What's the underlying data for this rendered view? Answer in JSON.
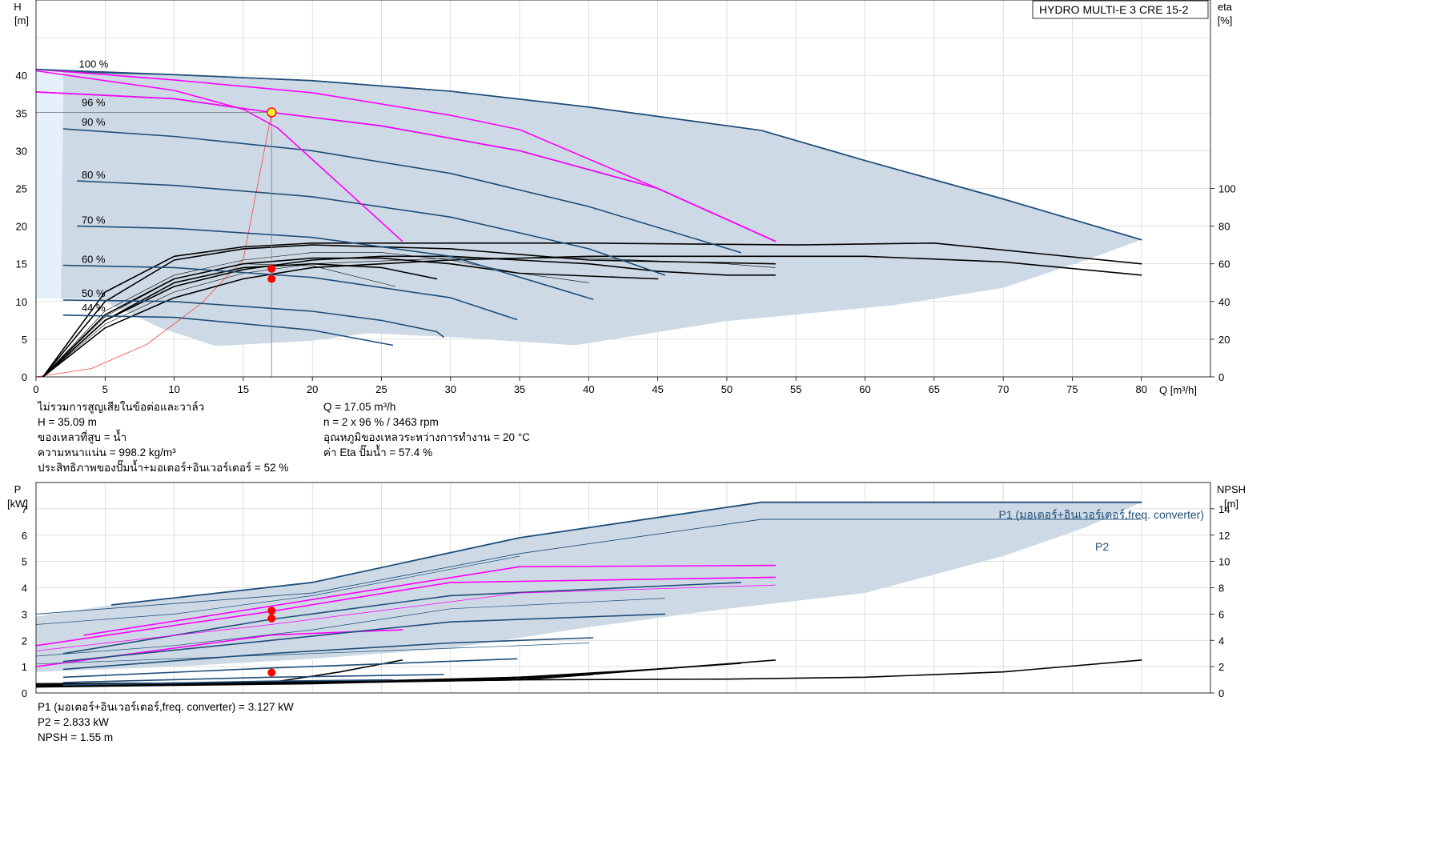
{
  "chart_data": [
    {
      "type": "line",
      "title": "HYDRO MULTI-E 3 CRE 15-2",
      "xlabel": "Q [m³/h]",
      "ylabel": "H\n[m]",
      "y2label": "eta\n[%]",
      "xlim": [
        0,
        85
      ],
      "ylim": [
        0,
        50
      ],
      "y2lim": [
        0,
        200
      ],
      "xticks": [
        0,
        5,
        10,
        15,
        20,
        25,
        30,
        35,
        40,
        45,
        50,
        55,
        60,
        65,
        70,
        75,
        80
      ],
      "yticks": [
        0,
        5,
        10,
        15,
        20,
        25,
        30,
        35,
        40
      ],
      "y2ticks": [
        0,
        20,
        40,
        60,
        80,
        100
      ],
      "grid": true,
      "colors": {
        "hq": "#1f4e79",
        "selected": "#ff00ff",
        "eta": "#000000",
        "envelope": "#cdd9e5",
        "system": "#ff4444"
      },
      "speed_curves": [
        {
          "name": "100 %",
          "points": [
            [
              2,
              40.5
            ],
            [
              10,
              40.1
            ],
            [
              20,
              39.3
            ],
            [
              30,
              37.9
            ],
            [
              40,
              35.8
            ],
            [
              52.5,
              32.7
            ],
            [
              60,
              28.7
            ],
            [
              70,
              23.6
            ],
            [
              80,
              18.2
            ]
          ]
        },
        {
          "name": "96 %",
          "points": [
            [
              0,
              37.8
            ],
            [
              10,
              36.9
            ],
            [
              17.05,
              35.09
            ],
            [
              25,
              33.3
            ],
            [
              35,
              30.0
            ],
            [
              45,
              25.0
            ],
            [
              53.5,
              18.0
            ]
          ]
        },
        {
          "name": "90 %",
          "points": [
            [
              2,
              32.9
            ],
            [
              10,
              31.9
            ],
            [
              20,
              30.0
            ],
            [
              30,
              27.0
            ],
            [
              40,
              22.6
            ],
            [
              51,
              16.5
            ]
          ]
        },
        {
          "name": "80 %",
          "points": [
            [
              3,
              26.0
            ],
            [
              10,
              25.4
            ],
            [
              20,
              23.9
            ],
            [
              30,
              21.2
            ],
            [
              40,
              17.0
            ],
            [
              45.5,
              13.5
            ]
          ]
        },
        {
          "name": "70 %",
          "points": [
            [
              3,
              20.0
            ],
            [
              10,
              19.7
            ],
            [
              20,
              18.5
            ],
            [
              30,
              16.0
            ],
            [
              40.3,
              10.3
            ]
          ]
        },
        {
          "name": "60 %",
          "points": [
            [
              2,
              14.8
            ],
            [
              10,
              14.5
            ],
            [
              20,
              13.2
            ],
            [
              30,
              10.5
            ],
            [
              34.8,
              7.6
            ]
          ]
        },
        {
          "name": "50 %",
          "points": [
            [
              2,
              10.2
            ],
            [
              10,
              10.0
            ],
            [
              20,
              8.7
            ],
            [
              25,
              7.5
            ],
            [
              29,
              6.0
            ],
            [
              29.5,
              5.3
            ]
          ]
        },
        {
          "name": "44 %",
          "points": [
            [
              2,
              8.2
            ],
            [
              10,
              7.9
            ],
            [
              20,
              6.2
            ],
            [
              25.8,
              4.2
            ]
          ]
        }
      ],
      "selected_max_curve": {
        "name": "",
        "points": [
          [
            0,
            40.8
          ],
          [
            10,
            39.4
          ],
          [
            20,
            37.7
          ],
          [
            30,
            34.7
          ],
          [
            35,
            32.8
          ],
          [
            45,
            25.0
          ],
          [
            53.5,
            18.0
          ]
        ]
      },
      "selected_single_pump": {
        "name": "",
        "points": [
          [
            0,
            40.6
          ],
          [
            10,
            38.0
          ],
          [
            15,
            35.5
          ],
          [
            17.5,
            33.0
          ],
          [
            26.5,
            18.0
          ]
        ]
      },
      "system_curve": {
        "name": "",
        "points": [
          [
            0,
            0
          ],
          [
            4,
            1.1
          ],
          [
            8,
            4.3
          ],
          [
            12,
            9.8
          ],
          [
            15,
            15.6
          ],
          [
            17.05,
            35.09
          ]
        ]
      },
      "eta_curves": [
        {
          "name": "",
          "points": [
            [
              0.5,
              0
            ],
            [
              5,
              35
            ],
            [
              10,
              54
            ],
            [
              15,
              62
            ],
            [
              20,
              66
            ],
            [
              25,
              66
            ],
            [
              30,
              62
            ],
            [
              35,
              55
            ],
            [
              40,
              50
            ]
          ]
        },
        {
          "name": "",
          "points": [
            [
              0.5,
              0
            ],
            [
              5,
              33
            ],
            [
              10,
              52
            ],
            [
              15,
              60
            ],
            [
              20,
              63
            ],
            [
              25,
              63
            ],
            [
              30,
              60
            ],
            [
              35,
              55
            ],
            [
              45,
              52
            ]
          ]
        },
        {
          "name": "",
          "points": [
            [
              0.5,
              0
            ],
            [
              5,
              30
            ],
            [
              10,
              48
            ],
            [
              15,
              57
            ],
            [
              20,
              62
            ],
            [
              25,
              64
            ],
            [
              30,
              64
            ],
            [
              35,
              62
            ],
            [
              40,
              60
            ],
            [
              45,
              56
            ],
            [
              50,
              54
            ],
            [
              53.5,
              54
            ]
          ]
        },
        {
          "name": "",
          "points": [
            [
              0.5,
              0
            ],
            [
              5,
              28
            ],
            [
              10,
              45
            ],
            [
              15,
              55
            ],
            [
              20,
              60
            ],
            [
              30,
              63
            ],
            [
              40,
              63
            ],
            [
              50,
              60
            ],
            [
              53.5,
              58
            ]
          ]
        },
        {
          "name": "",
          "points": [
            [
              0.5,
              0
            ],
            [
              5,
              26
            ],
            [
              10,
              42
            ],
            [
              15,
              52
            ],
            [
              20,
              58
            ],
            [
              30,
              62
            ],
            [
              40,
              64
            ],
            [
              50,
              64
            ],
            [
              60,
              64
            ],
            [
              70,
              61
            ],
            [
              80,
              54
            ]
          ]
        },
        {
          "name": "",
          "points": [
            [
              0.5,
              0
            ],
            [
              5,
              30
            ],
            [
              10,
              50
            ],
            [
              15,
              58
            ],
            [
              20,
              60
            ],
            [
              25,
              58
            ],
            [
              29,
              52
            ]
          ]
        },
        {
          "name": "",
          "points": [
            [
              0.5,
              0
            ],
            [
              5,
              32
            ],
            [
              10,
              52
            ],
            [
              15,
              60
            ],
            [
              20,
              59
            ],
            [
              26,
              48
            ]
          ]
        },
        {
          "name": "",
          "points": [
            [
              0.5,
              0
            ],
            [
              5,
              40
            ],
            [
              10,
              62
            ],
            [
              15,
              68
            ],
            [
              20,
              70
            ],
            [
              30,
              68
            ],
            [
              40,
              62
            ],
            [
              53.5,
              60
            ]
          ]
        },
        {
          "name": "",
          "points": [
            [
              0.5,
              0
            ],
            [
              5,
              45
            ],
            [
              10,
              64
            ],
            [
              15,
              69
            ],
            [
              20,
              71
            ],
            [
              30,
              71
            ],
            [
              40,
              71
            ],
            [
              55,
              70
            ],
            [
              65,
              71
            ],
            [
              80,
              60
            ]
          ]
        }
      ],
      "operating_points": [
        {
          "x": 17.05,
          "y": 35.09
        }
      ],
      "eta_points": [
        {
          "x": 17.05,
          "y": 57.4
        },
        {
          "x": 17.05,
          "y": 52
        }
      ],
      "info_left": [
        "ไม่รวมการสูญเสียในข้อต่อและวาล์ว",
        "H = 35.09 m",
        "ของเหลวที่สูบ = น้ำ",
        "ความหนาแน่น = 998.2 kg/m³",
        "ประสิทธิภาพของปั๊มน้ำ+มอเตอร์+อินเวอร์เตอร์ = 52 %"
      ],
      "info_right": [
        "Q = 17.05 m³/h",
        "n = 2 x 96 % / 3463 rpm",
        "อุณหภูมิของเหลวระหว่างการทำงาน = 20 °C",
        "ค่า Eta ปั๊มน้ำ = 57.4 %"
      ]
    },
    {
      "type": "line",
      "title": "",
      "xlabel": "",
      "ylabel": "P\n[kW]",
      "y2label": "NPSH\n[m]",
      "xlim": [
        0,
        85
      ],
      "ylim": [
        0,
        8
      ],
      "y2lim": [
        0,
        16
      ],
      "yticks": [
        0,
        1,
        2,
        3,
        4,
        5,
        6,
        7
      ],
      "y2ticks": [
        0,
        2,
        4,
        6,
        8,
        10,
        12,
        14
      ],
      "grid": true,
      "series": [
        {
          "name": "P1 (มอเตอร์+อินเวอร์เตอร์,freq. converter)",
          "points": [
            [
              5.5,
              3.35
            ],
            [
              20,
              4.2
            ],
            [
              35,
              5.9
            ],
            [
              52.5,
              7.25
            ],
            [
              80,
              7.25
            ]
          ]
        },
        {
          "name": "P2",
          "points": [
            [
              0,
              3.0
            ],
            [
              20,
              3.8
            ],
            [
              35,
              5.3
            ],
            [
              52.5,
              6.6
            ],
            [
              80,
              6.6
            ]
          ]
        }
      ],
      "power_curves": [
        {
          "color": "#ff00ff",
          "points": [
            [
              3.5,
              2.2
            ],
            [
              17,
              3.3
            ],
            [
              35,
              4.8
            ],
            [
              53.5,
              4.85
            ]
          ]
        },
        {
          "color": "#ff00ff",
          "points": [
            [
              0,
              1.8
            ],
            [
              17,
              3.1
            ],
            [
              30,
              4.2
            ],
            [
              53.5,
              4.4
            ]
          ]
        },
        {
          "color": "#ff00ff",
          "points": [
            [
              0,
              1.0
            ],
            [
              17,
              2.2
            ],
            [
              26.5,
              2.4
            ]
          ]
        },
        {
          "color": "#1f4e79",
          "points": [
            [
              2,
              1.5
            ],
            [
              17,
              2.8
            ],
            [
              30,
              3.7
            ],
            [
              51,
              4.2
            ]
          ]
        },
        {
          "color": "#1f4e79",
          "points": [
            [
              2,
              1.2
            ],
            [
              17,
              2.0
            ],
            [
              30,
              2.7
            ],
            [
              45.5,
              3.0
            ]
          ]
        },
        {
          "color": "#1f4e79",
          "points": [
            [
              2,
              0.9
            ],
            [
              17,
              1.5
            ],
            [
              30,
              1.9
            ],
            [
              40.3,
              2.1
            ]
          ]
        },
        {
          "color": "#1f4e79",
          "points": [
            [
              2,
              0.6
            ],
            [
              17,
              0.95
            ],
            [
              34.8,
              1.3
            ]
          ]
        },
        {
          "color": "#1f4e79",
          "points": [
            [
              2,
              0.4
            ],
            [
              17,
              0.6
            ],
            [
              29.5,
              0.7
            ]
          ]
        },
        {
          "color": "#1f4e79",
          "points": [
            [
              2,
              0.3
            ],
            [
              17,
              0.45
            ],
            [
              25.8,
              0.5
            ]
          ]
        }
      ],
      "npsh_curves": [
        {
          "points": [
            [
              0,
              0.7
            ],
            [
              10,
              0.75
            ],
            [
              20,
              0.85
            ],
            [
              30,
              1.0
            ],
            [
              40,
              1.4
            ],
            [
              53.5,
              2.5
            ]
          ]
        },
        {
          "points": [
            [
              0,
              0.7
            ],
            [
              20,
              0.8
            ],
            [
              35,
              1.0
            ],
            [
              50,
              1.05
            ],
            [
              60,
              1.2
            ],
            [
              70,
              1.6
            ],
            [
              80,
              2.5
            ]
          ]
        },
        {
          "points": [
            [
              0,
              0.6
            ],
            [
              17,
              0.8
            ],
            [
              22,
              1.6
            ],
            [
              26.5,
              2.5
            ]
          ]
        },
        {
          "points": [
            [
              0,
              0.5
            ],
            [
              20,
              0.8
            ],
            [
              35,
              1.2
            ],
            [
              45.5,
              1.85
            ]
          ]
        },
        {
          "points": [
            [
              0,
              0.55
            ],
            [
              20,
              0.75
            ],
            [
              35,
              1.0
            ],
            [
              40.3,
              1.4
            ]
          ]
        },
        {
          "points": [
            [
              0,
              0.45
            ],
            [
              20,
              0.7
            ],
            [
              35,
              1.1
            ],
            [
              51,
              2.25
            ]
          ]
        }
      ],
      "operating_points": [
        {
          "x": 17.05,
          "y": 3.127
        },
        {
          "x": 17.05,
          "y": 2.833
        }
      ],
      "npsh_points": [
        {
          "x": 17.05,
          "y": 1.55
        }
      ],
      "info_left": [
        "P1 (มอเตอร์+อินเวอร์เตอร์,freq. converter) = 3.127 kW",
        "P2 = 2.833 kW",
        "NPSH = 1.55 m"
      ]
    }
  ]
}
